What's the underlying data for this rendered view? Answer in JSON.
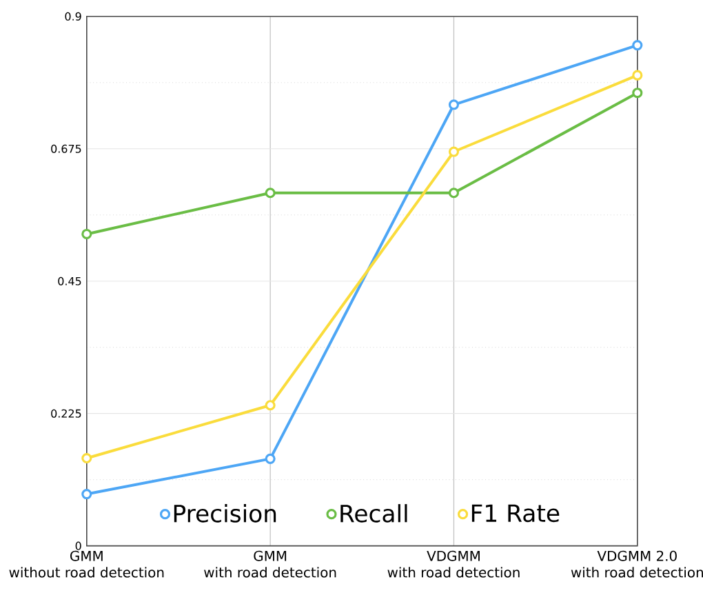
{
  "chart_data": {
    "type": "line",
    "categories": [
      "GMM\nwithout road detection",
      "GMM\nwith road detection",
      "VDGMM\nwith road detection",
      "VDGMM 2.0\nwith road detection"
    ],
    "series": [
      {
        "name": "Precision",
        "color": "#4da6f5",
        "values": [
          0.088,
          0.148,
          0.75,
          0.851
        ]
      },
      {
        "name": "Recall",
        "color": "#6abd45",
        "values": [
          0.53,
          0.6,
          0.6,
          0.77
        ]
      },
      {
        "name": "F1 Rate",
        "color": "#fadc3c",
        "values": [
          0.149,
          0.239,
          0.67,
          0.8
        ]
      }
    ],
    "ylim": [
      0,
      0.9
    ],
    "yticks": [
      0,
      0.225,
      0.45,
      0.675,
      0.9
    ],
    "grid": true,
    "legend": "bottom",
    "marker": "circle",
    "line_style": "solid"
  }
}
